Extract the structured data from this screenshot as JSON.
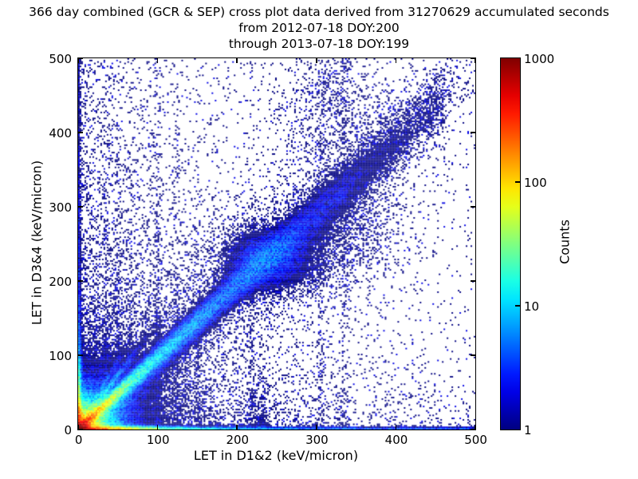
{
  "figure": {
    "title_lines": [
      "366 day combined (GCR & SEP) cross plot data derived from 31270629 accumulated seconds",
      "from 2012-07-18 DOY:200",
      "through 2013-07-18 DOY:199"
    ],
    "background_color": "#ffffff",
    "frame_color": "#000000"
  },
  "axes": {
    "xlabel": "LET in D1&2 (keV/micron)",
    "ylabel": "LET in D3&4 (keV/micron)",
    "xlim": [
      0,
      500
    ],
    "ylim": [
      0,
      500
    ],
    "x_ticks": [
      0,
      100,
      200,
      300,
      400,
      500
    ],
    "y_ticks": [
      0,
      100,
      200,
      300,
      400,
      500
    ]
  },
  "colorbar": {
    "label": "Counts",
    "ticks": [
      1,
      10,
      100,
      1000
    ],
    "scale": "log",
    "vmin": 1,
    "vmax": 1000,
    "colormap": "jet",
    "min_color": "#00007f",
    "max_color": "#7f0000"
  },
  "chart_data": {
    "type": "heatmap",
    "title": "366 day combined (GCR & SEP) cross plot of LET in D1&2 vs LET in D3&4",
    "xlabel": "LET in D1&2 (keV/micron)",
    "ylabel": "LET in D3&4 (keV/micron)",
    "zlabel": "Counts",
    "x_range": [
      0,
      500
    ],
    "y_range": [
      0,
      500
    ],
    "count_range": [
      1,
      1000
    ],
    "bins": 250,
    "seed": 1337,
    "notes": "2D histogram, log color scale, jet colormap on white; hot (~1000 counts) core at origin, red-orange band along y=0 out to x~80, dense y=x coincidence ridge fading by x~300 with a secondary clump near (240,228), faint steep streaks from origin, sparse navy single-count background densest near the axes and left half.",
    "density_model": {
      "features": [
        {
          "kind": "core",
          "amp": 1800,
          "scale": 7
        },
        {
          "kind": "radial",
          "amp": 220,
          "scale": 13
        },
        {
          "kind": "radial",
          "amp": 6,
          "scale": 30
        },
        {
          "kind": "radial",
          "amp": 1.2,
          "scale": 70
        },
        {
          "kind": "hband",
          "a1": 500,
          "s1": 35,
          "a2": 12,
          "s2": 200,
          "c": 2.5,
          "h": 2.2
        },
        {
          "kind": "vband",
          "a1": 250,
          "s1": 25,
          "a2": 5,
          "s2": 180,
          "c": 0.8,
          "w": 2.2
        },
        {
          "kind": "diag",
          "slope": 0.97,
          "a1": 400,
          "s1": 17,
          "a2": 25,
          "s2": 85,
          "a3": 3.5,
          "s3": 260,
          "w0": 3,
          "wg": 0.055,
          "xmax": 455
        },
        {
          "kind": "diag",
          "slope": 1.45,
          "a1": 60,
          "s1": 18,
          "a2": 0,
          "s2": 1,
          "a3": 0,
          "s3": 1,
          "w0": 2.5,
          "wg": 0.04,
          "xmax": 140
        },
        {
          "kind": "diag",
          "slope": 1.85,
          "a1": 25,
          "s1": 14,
          "a2": 0,
          "s2": 1,
          "a3": 0,
          "s3": 1,
          "w0": 2.5,
          "wg": 0.04,
          "xmax": 110
        },
        {
          "kind": "diag",
          "slope": 0.6,
          "a1": 20,
          "s1": 22,
          "a2": 0,
          "s2": 1,
          "a3": 0,
          "s3": 1,
          "w0": 2.5,
          "wg": 0.05,
          "xmax": 130
        },
        {
          "kind": "diag",
          "slope": 0.8,
          "a1": 10,
          "s1": 40,
          "a2": 0,
          "s2": 1,
          "a3": 0,
          "s3": 1,
          "w0": 3,
          "wg": 0.04,
          "xmax": 200
        },
        {
          "kind": "blob",
          "x0": 240,
          "y0": 228,
          "sx": 34,
          "sy": 26,
          "amp": 2.6
        },
        {
          "kind": "blob",
          "x0": 330,
          "y0": 265,
          "sx": 48,
          "sy": 42,
          "amp": 0.45
        },
        {
          "kind": "blob",
          "x0": 320,
          "y0": 430,
          "sx": 42,
          "sy": 60,
          "amp": 0.3
        },
        {
          "kind": "diagcloud",
          "slope": 0.97,
          "amp": 0.55,
          "w0": 22,
          "wg": 0.13,
          "decay": 190
        },
        {
          "kind": "bg",
          "amp": 0.012
        },
        {
          "kind": "bgexp",
          "amp": 0.55,
          "sx": 110,
          "sy": 420
        },
        {
          "kind": "bgexp",
          "amp": 0.35,
          "sx": 420,
          "sy": 70
        },
        {
          "kind": "column",
          "x0": 35,
          "w": 2.5,
          "amp": 0.5,
          "ydecay": 200
        },
        {
          "kind": "column",
          "x0": 50,
          "w": 2.5,
          "amp": 0.6,
          "ydecay": 260
        },
        {
          "kind": "column",
          "x0": 65,
          "w": 2.5,
          "amp": 0.45,
          "ydecay": 180
        },
        {
          "kind": "column",
          "x0": 100,
          "w": 3.0,
          "amp": 0.5,
          "ydecay": 300
        },
        {
          "kind": "column",
          "x0": 124,
          "w": 2.5,
          "amp": 0.35,
          "ydecay": 280
        },
        {
          "kind": "column",
          "x0": 150,
          "w": 2.5,
          "amp": 0.3,
          "ydecay": 250
        },
        {
          "kind": "column",
          "x0": 218,
          "w": 3.0,
          "amp": 0.35,
          "ydecay": 380
        },
        {
          "kind": "column",
          "x0": 230,
          "w": 6.0,
          "amp": 1.2,
          "ydecay": 35
        },
        {
          "kind": "column",
          "x0": 305,
          "w": 3.5,
          "amp": 0.28,
          "ydecay": 420
        },
        {
          "kind": "column",
          "x0": 335,
          "w": 3.5,
          "amp": 0.3,
          "ydecay": 450
        }
      ]
    }
  }
}
